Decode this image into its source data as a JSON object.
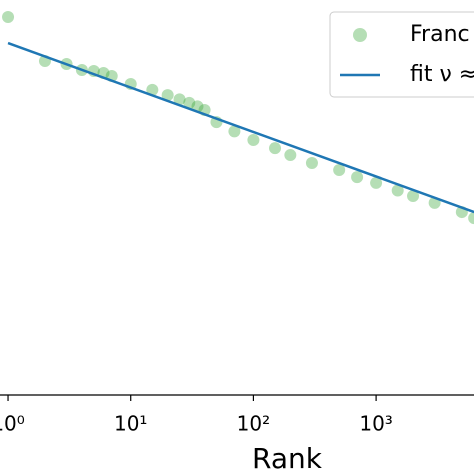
{
  "chart_data": {
    "type": "scatter",
    "xlabel": "Rank",
    "xscale": "log",
    "yscale": "log",
    "xlim": [
      0.86,
      6280
    ],
    "ylim": [
      0.000604,
      1
    ],
    "xticks": [
      {
        "value": 1,
        "label": "10⁰"
      },
      {
        "value": 10,
        "label": "10¹"
      },
      {
        "value": 100,
        "label": "10²"
      },
      {
        "value": 1000,
        "label": "10³"
      }
    ],
    "legend": "upper right",
    "series": [
      {
        "name": "Franc",
        "mode": "markers",
        "color": "#2ca02c",
        "x": [
          1,
          2,
          3,
          4,
          5,
          6,
          7,
          10,
          15,
          20,
          25,
          30,
          35,
          40,
          50,
          70,
          100,
          150,
          200,
          300,
          500,
          700,
          1000,
          1500,
          2000,
          3000,
          5000,
          6300
        ],
        "values": [
          0.727,
          0.318,
          0.301,
          0.269,
          0.264,
          0.254,
          0.24,
          0.207,
          0.185,
          0.168,
          0.155,
          0.145,
          0.136,
          0.127,
          0.101,
          0.085,
          0.0723,
          0.062,
          0.0545,
          0.047,
          0.0412,
          0.036,
          0.0323,
          0.028,
          0.0253,
          0.0222,
          0.0187,
          0.0167
        ]
      },
      {
        "name": "fit ν ≈",
        "mode": "line",
        "color": "#1f77b4",
        "x": [
          1,
          6300
        ],
        "values": [
          0.446,
          0.0187
        ]
      }
    ]
  }
}
